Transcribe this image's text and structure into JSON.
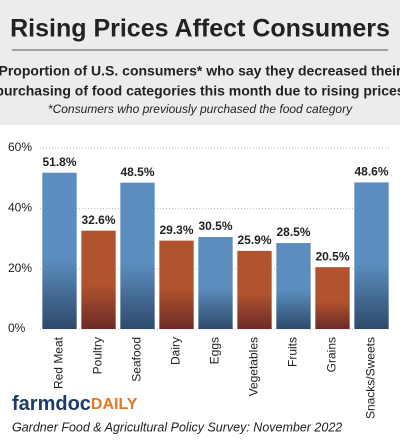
{
  "chart_data": {
    "type": "bar",
    "title": "Rising Prices Affect Consumers",
    "subtitle": [
      "Proportion of U.S. consumers* who say they decreased their",
      "purchasing of food categories this month due to rising prices"
    ],
    "note": "*Consumers who previously purchased the food category",
    "categories": [
      "Red Meat",
      "Poultry",
      "Seafood",
      "Dairy",
      "Eggs",
      "Vegetables",
      "Fruits",
      "Grains",
      "Snacks/Sweets"
    ],
    "values": [
      51.8,
      32.6,
      48.5,
      29.3,
      30.5,
      25.9,
      28.5,
      20.5,
      48.6
    ],
    "value_labels": [
      "51.8%",
      "32.6%",
      "48.5%",
      "29.3%",
      "30.5%",
      "25.9%",
      "28.5%",
      "20.5%",
      "48.6%"
    ],
    "colors": [
      "#5b8ebf",
      "#b0532e",
      "#5b8ebf",
      "#b0532e",
      "#5b8ebf",
      "#b0532e",
      "#5b8ebf",
      "#b0532e",
      "#5b8ebf"
    ],
    "ylim": [
      0,
      60
    ],
    "yticks": [
      {
        "value": 0,
        "label": "0%"
      },
      {
        "value": 20,
        "label": "20%"
      },
      {
        "value": 40,
        "label": "40%"
      },
      {
        "value": 60,
        "label": "60%"
      }
    ],
    "grid": true,
    "logo": [
      "farmdoc",
      "DAILY"
    ],
    "source": "Gardner Food & Agricultural Policy Survey: November 2022"
  }
}
